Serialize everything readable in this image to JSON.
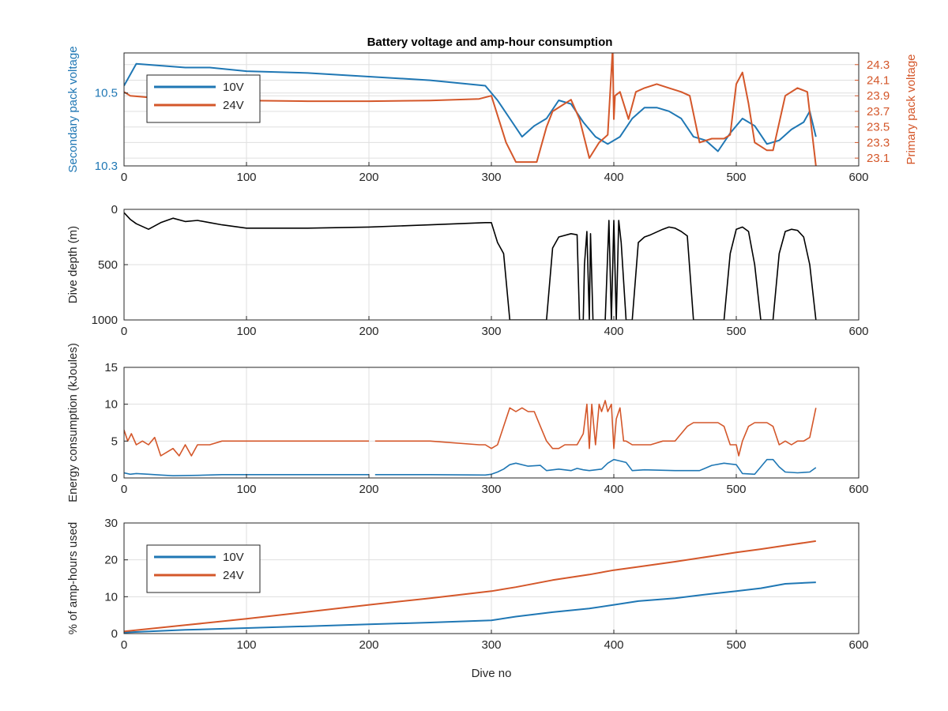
{
  "figure": {
    "title": "Battery voltage and amp-hour consumption"
  },
  "colors": {
    "blue": "#1f77b4",
    "orange": "#d4572a",
    "black": "#000000",
    "grid": "#dfdfdf",
    "axis": "#262626"
  },
  "chart_data": [
    {
      "id": "voltage",
      "type": "line",
      "title": "Battery voltage and amp-hour consumption",
      "xlabel": "",
      "ylabel": "Secondary pack voltage",
      "ylabel_right": "Primary pack voltage",
      "xlim": [
        0,
        600
      ],
      "ylim": [
        10.3,
        10.61
      ],
      "ylim_right": [
        23.0,
        24.45
      ],
      "xticks": [
        "0",
        "100",
        "200",
        "300",
        "400",
        "500",
        "600"
      ],
      "yticks": [
        "10.3",
        "10.5"
      ],
      "yticks_right": [
        "23.1",
        "23.3",
        "23.5",
        "23.7",
        "23.9",
        "24.1",
        "24.3"
      ],
      "grid": true,
      "legend": {
        "position": "top-left",
        "entries": [
          "10V",
          "24V"
        ]
      },
      "series": [
        {
          "name": "10V",
          "axis": "left",
          "color": "#1f77b4",
          "x": [
            0,
            10,
            30,
            50,
            70,
            100,
            150,
            200,
            250,
            295,
            305,
            315,
            325,
            335,
            345,
            355,
            365,
            375,
            385,
            395,
            405,
            415,
            425,
            435,
            445,
            455,
            465,
            475,
            485,
            495,
            505,
            515,
            525,
            535,
            545,
            555,
            560,
            565
          ],
          "y": [
            10.52,
            10.58,
            10.575,
            10.57,
            10.57,
            10.56,
            10.555,
            10.545,
            10.535,
            10.52,
            10.48,
            10.43,
            10.38,
            10.41,
            10.43,
            10.48,
            10.47,
            10.42,
            10.38,
            10.36,
            10.38,
            10.43,
            10.46,
            10.46,
            10.45,
            10.43,
            10.38,
            10.37,
            10.34,
            10.39,
            10.43,
            10.41,
            10.36,
            10.37,
            10.4,
            10.42,
            10.45,
            10.38
          ]
        },
        {
          "name": "24V",
          "axis": "right",
          "color": "#d4572a",
          "x": [
            0,
            5,
            20,
            50,
            100,
            150,
            200,
            250,
            290,
            300,
            312,
            320,
            330,
            337,
            345,
            350,
            355,
            365,
            372,
            380,
            388,
            395,
            399,
            400,
            401,
            405,
            412,
            418,
            425,
            435,
            445,
            455,
            462,
            470,
            480,
            490,
            495,
            500,
            505,
            510,
            515,
            520,
            525,
            530,
            540,
            550,
            558,
            565
          ],
          "y": [
            23.95,
            23.9,
            23.88,
            23.86,
            23.84,
            23.83,
            23.83,
            23.84,
            23.86,
            23.9,
            23.3,
            23.05,
            23.05,
            23.05,
            23.5,
            23.7,
            23.75,
            23.85,
            23.6,
            23.1,
            23.3,
            23.4,
            24.5,
            23.6,
            23.9,
            23.95,
            23.6,
            23.95,
            24.0,
            24.05,
            24.0,
            23.95,
            23.9,
            23.3,
            23.35,
            23.35,
            23.4,
            24.05,
            24.2,
            23.8,
            23.3,
            23.25,
            23.2,
            23.2,
            23.9,
            24.0,
            23.95,
            23.0
          ]
        }
      ]
    },
    {
      "id": "depth",
      "type": "line",
      "title": "",
      "xlabel": "",
      "ylabel": "Dive depth (m)",
      "xlim": [
        0,
        600
      ],
      "ylim": [
        0,
        1000
      ],
      "y_reversed": true,
      "xticks": [
        "0",
        "100",
        "200",
        "300",
        "400",
        "500",
        "600"
      ],
      "yticks": [
        "0",
        "500",
        "1000"
      ],
      "grid": true,
      "series": [
        {
          "name": "",
          "color": "#000000",
          "x": [
            0,
            5,
            10,
            20,
            30,
            40,
            50,
            60,
            70,
            80,
            100,
            150,
            200,
            250,
            295,
            300,
            305,
            310,
            315,
            330,
            340,
            345,
            350,
            355,
            365,
            370,
            372,
            375,
            376,
            378,
            380,
            381,
            383,
            385,
            390,
            393,
            396,
            398,
            400,
            402,
            404,
            406,
            410,
            413,
            415,
            420,
            425,
            430,
            440,
            445,
            450,
            455,
            460,
            465,
            470,
            480,
            490,
            495,
            500,
            505,
            510,
            515,
            520,
            530,
            535,
            540,
            545,
            550,
            555,
            560,
            565
          ],
          "y": [
            30,
            90,
            130,
            180,
            120,
            80,
            110,
            100,
            120,
            140,
            170,
            170,
            160,
            140,
            120,
            120,
            300,
            400,
            1000,
            1000,
            1000,
            1000,
            350,
            250,
            220,
            230,
            1000,
            1000,
            500,
            200,
            1000,
            220,
            1000,
            1000,
            1000,
            1000,
            100,
            1000,
            100,
            1000,
            100,
            300,
            1000,
            1000,
            1000,
            300,
            250,
            230,
            180,
            160,
            170,
            200,
            240,
            1000,
            1000,
            1000,
            1000,
            400,
            180,
            160,
            200,
            500,
            1000,
            1000,
            400,
            200,
            180,
            190,
            250,
            500,
            1000
          ]
        }
      ]
    },
    {
      "id": "energy",
      "type": "line",
      "title": "",
      "xlabel": "",
      "ylabel": "Energy consumption (kJoules)",
      "xlim": [
        0,
        600
      ],
      "ylim": [
        0,
        15
      ],
      "xticks": [
        "0",
        "100",
        "200",
        "300",
        "400",
        "500",
        "600"
      ],
      "yticks": [
        "0",
        "5",
        "10",
        "15"
      ],
      "grid": true,
      "series": [
        {
          "name": "",
          "color": "#1f77b4",
          "x": [
            0,
            5,
            10,
            20,
            30,
            40,
            60,
            80,
            100,
            150,
            200,
            202,
            205,
            210,
            250,
            295,
            300,
            305,
            310,
            315,
            320,
            330,
            340,
            345,
            355,
            365,
            370,
            375,
            380,
            390,
            395,
            400,
            405,
            410,
            415,
            425,
            450,
            460,
            465,
            470,
            480,
            490,
            495,
            500,
            505,
            515,
            525,
            530,
            535,
            540,
            550,
            560,
            565
          ],
          "y": [
            0.7,
            0.5,
            0.6,
            0.5,
            0.4,
            0.3,
            0.35,
            0.45,
            0.45,
            0.45,
            0.45,
            null,
            0.45,
            0.45,
            0.45,
            0.4,
            0.5,
            0.8,
            1.2,
            1.8,
            2.0,
            1.6,
            1.7,
            1.0,
            1.2,
            1.0,
            1.3,
            1.1,
            1.0,
            1.2,
            2.0,
            2.5,
            2.3,
            2.1,
            1.0,
            1.1,
            1.0,
            1.0,
            1.0,
            1.0,
            1.7,
            2.0,
            1.9,
            1.8,
            0.6,
            0.5,
            2.5,
            2.5,
            1.5,
            0.8,
            0.7,
            0.8,
            1.4
          ]
        },
        {
          "name": "",
          "color": "#d4572a",
          "x": [
            0,
            3,
            6,
            10,
            15,
            20,
            25,
            30,
            35,
            40,
            45,
            50,
            55,
            60,
            70,
            80,
            100,
            150,
            200,
            202,
            205,
            210,
            250,
            290,
            295,
            300,
            305,
            310,
            315,
            320,
            325,
            330,
            335,
            340,
            345,
            350,
            355,
            360,
            370,
            375,
            378,
            380,
            382,
            385,
            388,
            390,
            393,
            395,
            398,
            400,
            402,
            405,
            408,
            410,
            415,
            420,
            430,
            440,
            450,
            460,
            465,
            470,
            475,
            480,
            485,
            490,
            495,
            500,
            502,
            505,
            510,
            515,
            520,
            525,
            530,
            535,
            540,
            545,
            550,
            555,
            560,
            565
          ],
          "y": [
            6.5,
            5.0,
            6.0,
            4.5,
            5.0,
            4.5,
            5.5,
            3.0,
            3.5,
            4.0,
            3.0,
            4.5,
            3.0,
            4.5,
            4.5,
            5.0,
            5.0,
            5.0,
            5.0,
            null,
            5.0,
            5.0,
            5.0,
            4.5,
            4.5,
            4.0,
            4.5,
            7.0,
            9.5,
            9.0,
            9.5,
            9.0,
            9.0,
            7.0,
            5.0,
            4.0,
            4.0,
            4.5,
            4.5,
            6.0,
            10.0,
            4.0,
            10.0,
            4.5,
            10.0,
            9.0,
            10.5,
            9.0,
            10.0,
            4.0,
            8.0,
            9.5,
            5.0,
            5.0,
            4.5,
            4.5,
            4.5,
            5.0,
            5.0,
            7.0,
            7.5,
            7.5,
            7.5,
            7.5,
            7.5,
            7.0,
            4.5,
            4.5,
            3.0,
            5.0,
            7.0,
            7.5,
            7.5,
            7.5,
            7.0,
            4.5,
            5.0,
            4.5,
            5.0,
            5.0,
            5.5,
            9.5
          ]
        }
      ]
    },
    {
      "id": "amphours",
      "type": "line",
      "title": "",
      "xlabel": "Dive no",
      "ylabel": "% of amp-hours used",
      "xlim": [
        0,
        600
      ],
      "ylim": [
        0,
        30
      ],
      "xticks": [
        "0",
        "100",
        "200",
        "300",
        "400",
        "500",
        "600"
      ],
      "yticks": [
        "0",
        "10",
        "20",
        "30"
      ],
      "grid": true,
      "legend": {
        "position": "top-left",
        "entries": [
          "10V",
          "24V"
        ]
      },
      "series": [
        {
          "name": "10V",
          "color": "#1f77b4",
          "x": [
            0,
            50,
            100,
            150,
            200,
            250,
            300,
            320,
            350,
            380,
            400,
            420,
            450,
            480,
            500,
            520,
            540,
            565
          ],
          "y": [
            0.3,
            1.0,
            1.5,
            2.0,
            2.5,
            3.0,
            3.6,
            4.6,
            5.8,
            6.8,
            7.8,
            8.8,
            9.6,
            10.8,
            11.5,
            12.3,
            13.5,
            13.9
          ]
        },
        {
          "name": "24V",
          "color": "#d4572a",
          "x": [
            0,
            50,
            100,
            150,
            200,
            250,
            300,
            320,
            350,
            380,
            400,
            420,
            450,
            480,
            500,
            520,
            540,
            565
          ],
          "y": [
            0.6,
            2.3,
            4.0,
            5.9,
            7.8,
            9.6,
            11.5,
            12.6,
            14.5,
            16.0,
            17.2,
            18.1,
            19.5,
            21.0,
            22.0,
            22.9,
            23.9,
            25.1
          ]
        }
      ]
    }
  ]
}
